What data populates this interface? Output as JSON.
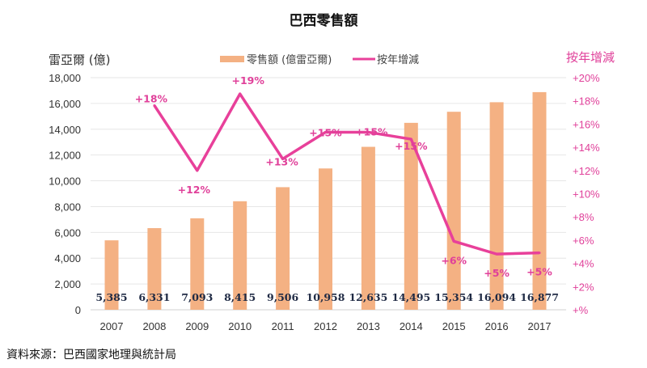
{
  "chart_data": {
    "type": "bar+line",
    "title": "巴西零售額",
    "ylabel": "雷亞爾 (億)",
    "y2label": "按年增減",
    "categories": [
      "2007",
      "2008",
      "2009",
      "2010",
      "2011",
      "2012",
      "2013",
      "2014",
      "2015",
      "2016",
      "2017"
    ],
    "series": [
      {
        "name": "零售額 (億雷亞爾)",
        "type": "bar",
        "axis": "left",
        "color": "#f4b183",
        "values": [
          5385,
          6331,
          7093,
          8415,
          9506,
          10958,
          12635,
          14495,
          15354,
          16094,
          16877
        ],
        "labels": [
          "5,385",
          "6,331",
          "7,093",
          "8,415",
          "9,506",
          "10,958",
          "12,635",
          "14,495",
          "15,354",
          "16,094",
          "16,877"
        ]
      },
      {
        "name": "按年增減",
        "type": "line",
        "axis": "right",
        "color": "#e8409a",
        "values": [
          null,
          17.6,
          12.0,
          18.6,
          13.0,
          15.3,
          15.3,
          14.7,
          5.9,
          4.8,
          4.9
        ],
        "labels": [
          "",
          "+18%",
          "+12%",
          "+19%",
          "+13%",
          "+15%",
          "+15%",
          "+15%",
          "+6%",
          "+5%",
          "+5%"
        ]
      }
    ],
    "ylim": [
      0,
      18000
    ],
    "yticks": [
      "0",
      "2,000",
      "4,000",
      "6,000",
      "8,000",
      "10,000",
      "12,000",
      "14,000",
      "16,000",
      "18,000"
    ],
    "y2lim": [
      0,
      20
    ],
    "y2ticks": [
      "+%",
      "+2%",
      "+4%",
      "+6%",
      "+8%",
      "+10%",
      "+12%",
      "+14%",
      "+16%",
      "+18%",
      "+20%"
    ],
    "grid": true,
    "legend": "top-center"
  },
  "source": "資料來源：巴西國家地理與統計局"
}
